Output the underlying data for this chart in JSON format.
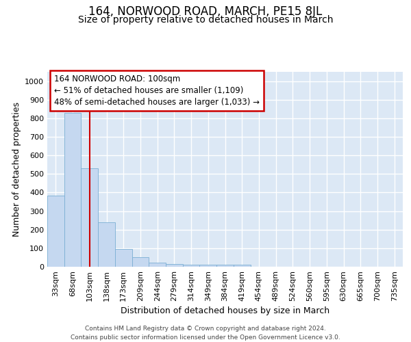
{
  "title1": "164, NORWOOD ROAD, MARCH, PE15 8JL",
  "title2": "Size of property relative to detached houses in March",
  "xlabel": "Distribution of detached houses by size in March",
  "ylabel": "Number of detached properties",
  "bar_labels": [
    "33sqm",
    "68sqm",
    "103sqm",
    "138sqm",
    "173sqm",
    "209sqm",
    "244sqm",
    "279sqm",
    "314sqm",
    "349sqm",
    "384sqm",
    "419sqm",
    "454sqm",
    "489sqm",
    "524sqm",
    "560sqm",
    "595sqm",
    "630sqm",
    "665sqm",
    "700sqm",
    "735sqm"
  ],
  "bar_values": [
    385,
    830,
    530,
    240,
    95,
    52,
    22,
    15,
    10,
    10,
    10,
    10,
    0,
    0,
    0,
    0,
    0,
    0,
    0,
    0,
    0
  ],
  "bar_color": "#c5d8f0",
  "bar_edge_color": "#7bafd4",
  "vline_x_index": 2,
  "vline_color": "#cc0000",
  "ylim": [
    0,
    1050
  ],
  "yticks": [
    0,
    100,
    200,
    300,
    400,
    500,
    600,
    700,
    800,
    900,
    1000
  ],
  "annotation_text": "164 NORWOOD ROAD: 100sqm\n← 51% of detached houses are smaller (1,109)\n48% of semi-detached houses are larger (1,033) →",
  "annotation_box_color": "#ffffff",
  "annotation_box_edge": "#cc0000",
  "footer1": "Contains HM Land Registry data © Crown copyright and database right 2024.",
  "footer2": "Contains public sector information licensed under the Open Government Licence v3.0.",
  "bg_color": "#dce8f5",
  "grid_color": "#ffffff",
  "title1_fontsize": 12,
  "title2_fontsize": 10,
  "tick_fontsize": 8,
  "label_fontsize": 9,
  "fig_bg_color": "#ffffff"
}
